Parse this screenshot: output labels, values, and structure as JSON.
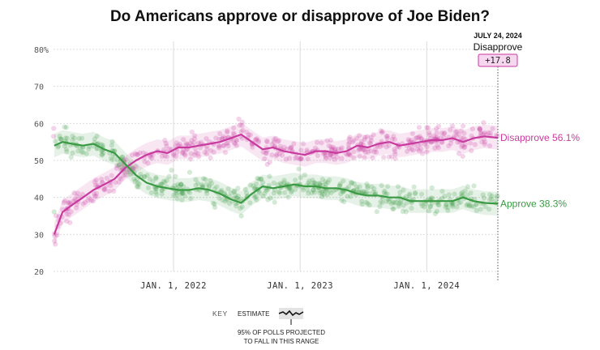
{
  "chart_data": {
    "type": "line",
    "title": "Do Americans approve or disapprove of Joe Biden?",
    "ylim": [
      20,
      80
    ],
    "yticks": [
      "20",
      "30",
      "40",
      "50",
      "60",
      "70",
      "80%"
    ],
    "xlim": [
      "2021-01-20",
      "2024-07-24"
    ],
    "xticks": [
      {
        "date": "2022-01-01",
        "label": "JAN. 1, 2022"
      },
      {
        "date": "2023-01-01",
        "label": "JAN. 1, 2023"
      },
      {
        "date": "2024-01-01",
        "label": "JAN. 1, 2024"
      }
    ],
    "grid": true,
    "series": [
      {
        "name": "Disapprove",
        "color": "#c93a9f",
        "end_label": "Disapprove 56.1%",
        "points": [
          [
            "2021-01-22",
            30
          ],
          [
            "2021-02-15",
            36
          ],
          [
            "2021-03-15",
            38
          ],
          [
            "2021-04-15",
            40
          ],
          [
            "2021-05-15",
            42
          ],
          [
            "2021-06-15",
            43.5
          ],
          [
            "2021-07-15",
            45
          ],
          [
            "2021-08-15",
            48
          ],
          [
            "2021-09-15",
            50
          ],
          [
            "2021-10-15",
            51.5
          ],
          [
            "2021-11-15",
            52.5
          ],
          [
            "2021-12-15",
            52
          ],
          [
            "2022-01-15",
            53.5
          ],
          [
            "2022-02-15",
            53.5
          ],
          [
            "2022-03-15",
            54
          ],
          [
            "2022-04-15",
            54.5
          ],
          [
            "2022-05-15",
            55
          ],
          [
            "2022-06-15",
            56
          ],
          [
            "2022-07-15",
            57
          ],
          [
            "2022-08-15",
            55
          ],
          [
            "2022-09-15",
            53
          ],
          [
            "2022-10-15",
            53.5
          ],
          [
            "2022-11-15",
            52.5
          ],
          [
            "2022-12-15",
            52
          ],
          [
            "2023-01-15",
            51.5
          ],
          [
            "2023-02-15",
            52.5
          ],
          [
            "2023-03-15",
            52.5
          ],
          [
            "2023-04-15",
            52
          ],
          [
            "2023-05-15",
            52.5
          ],
          [
            "2023-06-15",
            54
          ],
          [
            "2023-07-15",
            53.5
          ],
          [
            "2023-08-15",
            54.5
          ],
          [
            "2023-09-15",
            55
          ],
          [
            "2023-10-15",
            54
          ],
          [
            "2023-11-15",
            54.5
          ],
          [
            "2023-12-15",
            55
          ],
          [
            "2024-01-15",
            55.5
          ],
          [
            "2024-02-15",
            55.5
          ],
          [
            "2024-03-15",
            56
          ],
          [
            "2024-04-15",
            55
          ],
          [
            "2024-05-15",
            56
          ],
          [
            "2024-06-15",
            56.5
          ],
          [
            "2024-07-24",
            56.1
          ]
        ]
      },
      {
        "name": "Approve",
        "color": "#3a9a43",
        "end_label": "Approve 38.3%",
        "points": [
          [
            "2021-01-22",
            54
          ],
          [
            "2021-02-15",
            55
          ],
          [
            "2021-03-15",
            54.5
          ],
          [
            "2021-04-15",
            54
          ],
          [
            "2021-05-15",
            54.5
          ],
          [
            "2021-06-15",
            53
          ],
          [
            "2021-07-15",
            52
          ],
          [
            "2021-08-15",
            49
          ],
          [
            "2021-09-15",
            46
          ],
          [
            "2021-10-15",
            44
          ],
          [
            "2021-11-15",
            43
          ],
          [
            "2021-12-15",
            42.5
          ],
          [
            "2022-01-15",
            42
          ],
          [
            "2022-02-15",
            42
          ],
          [
            "2022-03-15",
            42.5
          ],
          [
            "2022-04-15",
            42
          ],
          [
            "2022-05-15",
            41
          ],
          [
            "2022-06-15",
            39.5
          ],
          [
            "2022-07-15",
            38.5
          ],
          [
            "2022-08-15",
            41
          ],
          [
            "2022-09-15",
            43
          ],
          [
            "2022-10-15",
            42.5
          ],
          [
            "2022-11-15",
            43
          ],
          [
            "2022-12-15",
            43.5
          ],
          [
            "2023-01-15",
            43
          ],
          [
            "2023-02-15",
            43
          ],
          [
            "2023-03-15",
            42.5
          ],
          [
            "2023-04-15",
            42.5
          ],
          [
            "2023-05-15",
            42
          ],
          [
            "2023-06-15",
            41
          ],
          [
            "2023-07-15",
            40.5
          ],
          [
            "2023-08-15",
            40.5
          ],
          [
            "2023-09-15",
            40
          ],
          [
            "2023-10-15",
            40
          ],
          [
            "2023-11-15",
            39
          ],
          [
            "2023-12-15",
            39
          ],
          [
            "2024-01-15",
            39
          ],
          [
            "2024-02-15",
            39
          ],
          [
            "2024-03-15",
            39
          ],
          [
            "2024-04-15",
            40
          ],
          [
            "2024-05-15",
            39
          ],
          [
            "2024-06-15",
            38.5
          ],
          [
            "2024-07-24",
            38.3
          ]
        ]
      }
    ],
    "annotation": {
      "date_label": "JULY 24, 2024",
      "label": "Disapprove",
      "value": "+17.8"
    },
    "key": {
      "title": "KEY",
      "estimate_label": "ESTIMATE",
      "range_note_1": "95% OF POLLS PROJECTED",
      "range_note_2": "TO FALL IN THIS RANGE"
    }
  }
}
